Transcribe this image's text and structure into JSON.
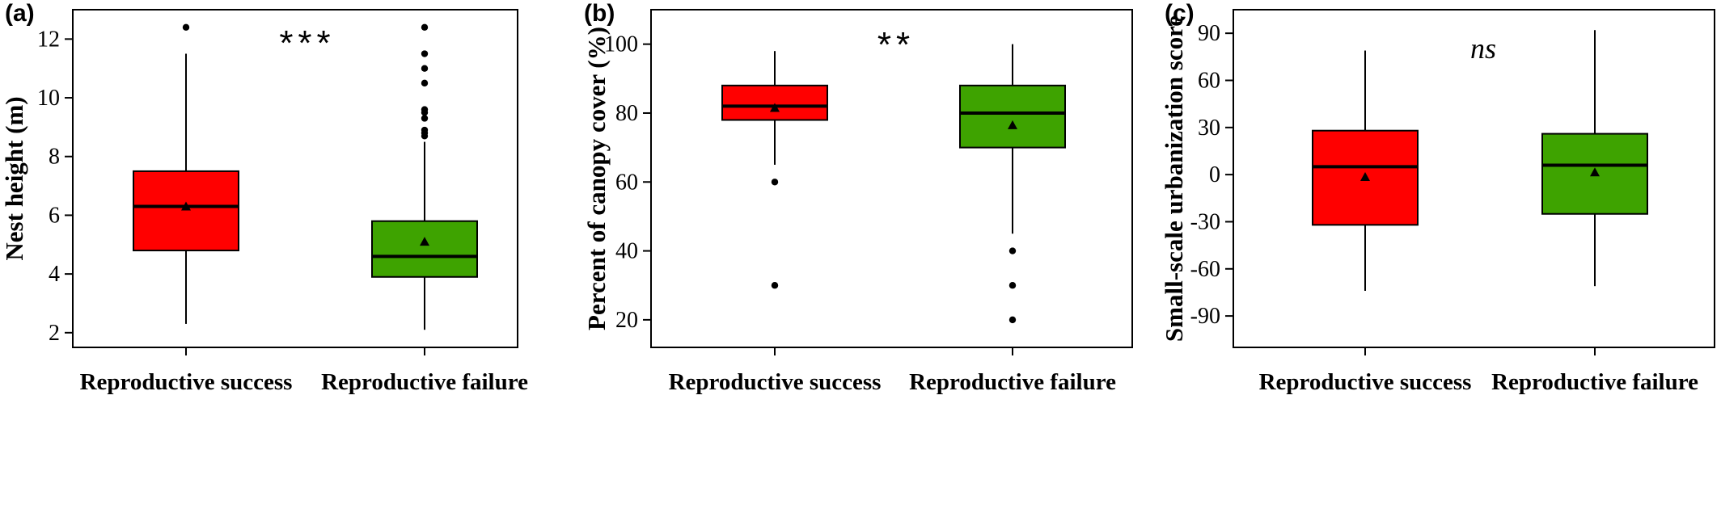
{
  "figure": {
    "panels": [
      {
        "label": "(a)",
        "ylabel": "Nest height (m)",
        "significance": "***",
        "sig_style": "stars"
      },
      {
        "label": "(b)",
        "ylabel": "Percent of canopy cover (%)",
        "significance": "**",
        "sig_style": "stars"
      },
      {
        "label": "(c)",
        "ylabel": "Small-scale urbanization score",
        "significance": "ns",
        "sig_style": "italic"
      }
    ]
  },
  "chart_data": [
    {
      "type": "box",
      "title": "",
      "panel_label": "(a)",
      "ylabel": "Nest height (m)",
      "ylim": [
        1.5,
        13.0
      ],
      "yticks": [
        2,
        4,
        6,
        8,
        10,
        12
      ],
      "ytick_labels": [
        "2",
        "4",
        "6",
        "8",
        "10",
        "12"
      ],
      "categories": [
        "Reproductive success",
        "Reproductive failure"
      ],
      "significance": "***",
      "colors": [
        "#ff0000",
        "#3ea300"
      ],
      "boxes": [
        {
          "category": "Reproductive success",
          "whisker_low": 2.3,
          "q1": 4.8,
          "median": 6.3,
          "q3": 7.5,
          "whisker_high": 11.5,
          "mean": 6.3,
          "outliers": [
            12.4
          ]
        },
        {
          "category": "Reproductive failure",
          "whisker_low": 2.1,
          "q1": 3.9,
          "median": 4.6,
          "q3": 5.8,
          "whisker_high": 8.5,
          "mean": 5.1,
          "outliers": [
            8.7,
            8.8,
            8.9,
            9.3,
            9.5,
            9.6,
            10.5,
            11.0,
            11.5,
            12.4
          ]
        }
      ]
    },
    {
      "type": "box",
      "title": "",
      "panel_label": "(b)",
      "ylabel": "Percent of canopy cover (%)",
      "ylim": [
        12,
        110
      ],
      "yticks": [
        20,
        40,
        60,
        80,
        100
      ],
      "ytick_labels": [
        "20",
        "40",
        "60",
        "80",
        "100"
      ],
      "categories": [
        "Reproductive success",
        "Reproductive failure"
      ],
      "significance": "**",
      "colors": [
        "#ff0000",
        "#3ea300"
      ],
      "boxes": [
        {
          "category": "Reproductive success",
          "whisker_low": 65,
          "q1": 78,
          "median": 82,
          "q3": 88,
          "whisker_high": 98,
          "mean": 81.5,
          "outliers": [
            60,
            30
          ]
        },
        {
          "category": "Reproductive failure",
          "whisker_low": 45,
          "q1": 70,
          "median": 80,
          "q3": 88,
          "whisker_high": 100,
          "mean": 76.5,
          "outliers": [
            40,
            30,
            20
          ]
        }
      ]
    },
    {
      "type": "box",
      "title": "",
      "panel_label": "(c)",
      "ylabel": "Small-scale urbanization score",
      "ylim": [
        -110,
        105
      ],
      "yticks": [
        -90,
        -60,
        -30,
        0,
        30,
        60,
        90
      ],
      "ytick_labels": [
        "-90",
        "-60",
        "-30",
        "0",
        "30",
        "60",
        "90"
      ],
      "categories": [
        "Reproductive success",
        "Reproductive failure"
      ],
      "significance": "ns",
      "colors": [
        "#ff0000",
        "#3ea300"
      ],
      "boxes": [
        {
          "category": "Reproductive success",
          "whisker_low": -74,
          "q1": -32,
          "median": 5,
          "q3": 28,
          "whisker_high": 79,
          "mean": -1.5,
          "outliers": []
        },
        {
          "category": "Reproductive failure",
          "whisker_low": -71,
          "q1": -25,
          "median": 6,
          "q3": 26,
          "whisker_high": 92,
          "mean": 1.5,
          "outliers": []
        }
      ]
    }
  ]
}
